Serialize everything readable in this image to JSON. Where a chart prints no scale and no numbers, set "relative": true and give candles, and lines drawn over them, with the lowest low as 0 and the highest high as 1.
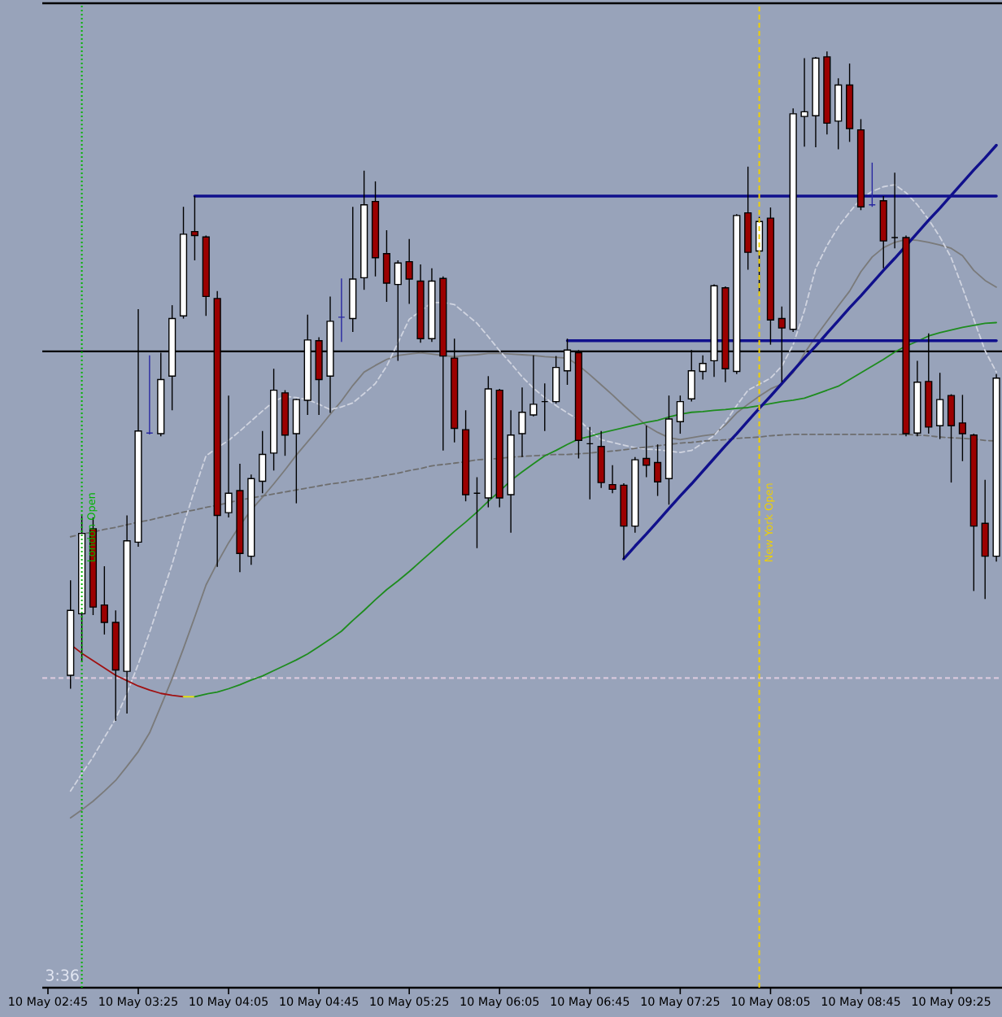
{
  "chart_data": {
    "type": "candlestick",
    "relative": true,
    "categories": [
      "10 May 02:45",
      null,
      null,
      null,
      null,
      null,
      null,
      null,
      "10 May 03:25",
      null,
      null,
      null,
      null,
      null,
      null,
      null,
      "10 May 04:05",
      null,
      null,
      null,
      null,
      null,
      null,
      null,
      "10 May 04:45",
      null,
      null,
      null,
      null,
      null,
      null,
      null,
      "10 May 05:25",
      null,
      null,
      null,
      null,
      null,
      null,
      null,
      "10 May 06:05",
      null,
      null,
      null,
      null,
      null,
      null,
      null,
      "10 May 06:45",
      null,
      null,
      null,
      null,
      null,
      null,
      null,
      "10 May 07:25",
      null,
      null,
      null,
      null,
      null,
      null,
      null,
      "10 May 08:05",
      null,
      null,
      null,
      null,
      null,
      null,
      null,
      "10 May 08:45",
      null,
      null,
      null,
      null,
      null,
      null,
      null,
      "10 May 09:25",
      null,
      null,
      null,
      null
    ],
    "ohlc": [
      null,
      null,
      [
        0.068,
        0.21,
        0.048,
        0.165
      ],
      [
        0.16,
        0.306,
        0.088,
        0.28
      ],
      [
        0.287,
        0.304,
        0.158,
        0.17
      ],
      [
        0.173,
        0.231,
        0.129,
        0.147
      ],
      [
        0.147,
        0.165,
        0.0,
        0.076
      ],
      [
        0.074,
        0.307,
        0.011,
        0.269
      ],
      [
        0.267,
        0.615,
        0.26,
        0.433
      ],
      [
        0.43,
        0.546,
        0.428,
        0.43
      ],
      [
        0.429,
        0.55,
        0.425,
        0.51
      ],
      [
        0.515,
        0.621,
        0.464,
        0.601
      ],
      [
        0.605,
        0.768,
        0.601,
        0.727
      ],
      [
        0.731,
        0.784,
        0.688,
        0.725
      ],
      [
        0.723,
        0.725,
        0.605,
        0.634
      ],
      [
        0.631,
        0.642,
        0.23,
        0.307
      ],
      [
        0.311,
        0.486,
        0.304,
        0.34
      ],
      [
        0.344,
        0.384,
        0.222,
        0.25
      ],
      [
        0.246,
        0.368,
        0.233,
        0.362
      ],
      [
        0.358,
        0.433,
        0.34,
        0.398
      ],
      [
        0.4,
        0.526,
        0.374,
        0.494
      ],
      [
        0.49,
        0.494,
        0.396,
        0.427
      ],
      [
        0.429,
        0.481,
        0.325,
        0.48
      ],
      [
        0.479,
        0.607,
        0.457,
        0.569
      ],
      [
        0.568,
        0.573,
        0.457,
        0.51
      ],
      [
        0.515,
        0.634,
        0.46,
        0.597
      ],
      [
        0.603,
        0.661,
        0.566,
        0.603
      ],
      [
        0.601,
        0.768,
        0.581,
        0.66
      ],
      [
        0.662,
        0.822,
        0.644,
        0.771
      ],
      [
        0.776,
        0.806,
        0.664,
        0.692
      ],
      [
        0.698,
        0.733,
        0.626,
        0.654
      ],
      [
        0.652,
        0.688,
        0.538,
        0.684
      ],
      [
        0.686,
        0.72,
        0.623,
        0.66
      ],
      [
        0.657,
        0.682,
        0.565,
        0.571
      ],
      [
        0.571,
        0.676,
        0.566,
        0.657
      ],
      [
        0.661,
        0.664,
        0.404,
        0.545
      ],
      [
        0.542,
        0.571,
        0.416,
        0.437
      ],
      [
        0.435,
        0.464,
        0.328,
        0.338
      ],
      [
        0.34,
        0.364,
        0.258,
        0.34
      ],
      [
        0.333,
        0.515,
        0.319,
        0.496
      ],
      [
        0.494,
        0.496,
        0.319,
        0.333
      ],
      [
        0.338,
        0.464,
        0.281,
        0.427
      ],
      [
        0.429,
        0.498,
        0.394,
        0.461
      ],
      [
        0.457,
        0.546,
        0.455,
        0.473
      ],
      [
        0.477,
        0.504,
        0.433,
        0.477
      ],
      [
        0.477,
        0.545,
        0.474,
        0.528
      ],
      [
        0.523,
        0.571,
        0.502,
        0.554
      ],
      [
        0.55,
        0.554,
        0.392,
        0.419
      ],
      [
        0.414,
        0.439,
        0.331,
        0.414
      ],
      [
        0.41,
        0.433,
        0.348,
        0.356
      ],
      [
        0.353,
        0.382,
        0.34,
        0.346
      ],
      [
        0.352,
        0.355,
        0.242,
        0.291
      ],
      [
        0.291,
        0.394,
        0.281,
        0.39
      ],
      [
        0.392,
        0.441,
        0.364,
        0.382
      ],
      [
        0.386,
        0.413,
        0.336,
        0.357
      ],
      [
        0.362,
        0.486,
        0.323,
        0.451
      ],
      [
        0.447,
        0.486,
        0.429,
        0.477
      ],
      [
        0.481,
        0.554,
        0.477,
        0.523
      ],
      [
        0.522,
        0.546,
        0.51,
        0.534
      ],
      [
        0.538,
        0.652,
        0.514,
        0.65
      ],
      [
        0.647,
        0.649,
        0.506,
        0.526
      ],
      [
        0.522,
        0.757,
        0.518,
        0.755
      ],
      [
        0.759,
        0.828,
        0.674,
        0.7
      ],
      [
        0.702,
        0.753,
        0.639,
        0.746
      ],
      [
        0.751,
        0.767,
        0.562,
        0.599
      ],
      [
        0.601,
        0.619,
        0.506,
        0.587
      ],
      [
        0.585,
        0.915,
        0.581,
        0.907
      ],
      [
        0.903,
        0.99,
        0.858,
        0.91
      ],
      [
        0.904,
        0.992,
        0.857,
        0.99
      ],
      [
        0.992,
        1.0,
        0.876,
        0.893
      ],
      [
        0.896,
        0.96,
        0.854,
        0.95
      ],
      [
        0.95,
        0.982,
        0.865,
        0.885
      ],
      [
        0.883,
        0.899,
        0.763,
        0.768
      ],
      [
        0.771,
        0.834,
        0.768,
        0.771
      ],
      [
        0.777,
        0.784,
        0.676,
        0.717
      ],
      [
        0.722,
        0.819,
        0.706,
        0.722
      ],
      [
        0.722,
        0.725,
        0.425,
        0.429
      ],
      [
        0.43,
        0.538,
        0.425,
        0.506
      ],
      [
        0.507,
        0.579,
        0.429,
        0.439
      ],
      [
        0.441,
        0.52,
        0.421,
        0.48
      ],
      [
        0.486,
        0.488,
        0.356,
        0.441
      ],
      [
        0.445,
        0.487,
        0.388,
        0.429
      ],
      [
        0.427,
        0.429,
        0.194,
        0.291
      ],
      [
        0.295,
        0.36,
        0.182,
        0.246
      ],
      [
        0.246,
        0.518,
        0.238,
        0.512
      ]
    ],
    "colors": [
      null,
      null,
      "#ffffff",
      "#ffffff",
      "#9b0000",
      "#9b0000",
      "#9b0000",
      "#ffffff",
      "#ffffff",
      "#2828a0",
      "#ffffff",
      "#ffffff",
      "#ffffff",
      "#9b0000",
      "#9b0000",
      "#9b0000",
      "#ffffff",
      "#9b0000",
      "#ffffff",
      "#ffffff",
      "#ffffff",
      "#9b0000",
      "#ffffff",
      "#ffffff",
      "#9b0000",
      "#ffffff",
      "#2828a0",
      "#ffffff",
      "#ffffff",
      "#9b0000",
      "#9b0000",
      "#ffffff",
      "#9b0000",
      "#9b0000",
      "#ffffff",
      "#9b0000",
      "#9b0000",
      "#9b0000",
      "#000000",
      "#ffffff",
      "#9b0000",
      "#ffffff",
      "#ffffff",
      "#ffffff",
      "#000000",
      "#ffffff",
      "#ffffff",
      "#9b0000",
      "#000000",
      "#9b0000",
      "#9b0000",
      "#9b0000",
      "#ffffff",
      "#9b0000",
      "#9b0000",
      "#ffffff",
      "#ffffff",
      "#ffffff",
      "#ffffff",
      "#ffffff",
      "#9b0000",
      "#ffffff",
      "#9b0000",
      "#ffffff",
      "#9b0000",
      "#9b0000",
      "#ffffff",
      "#ffffff",
      "#ffffff",
      "#9b0000",
      "#ffffff",
      "#9b0000",
      "#9b0000",
      "#2828a0",
      "#9b0000",
      "#000000",
      "#9b0000",
      "#ffffff",
      "#9b0000",
      "#ffffff",
      "#9b0000",
      "#9b0000",
      "#9b0000",
      "#9b0000",
      "#ffffff"
    ],
    "series": [
      {
        "type": "line",
        "color": "#7a7a7a",
        "line_style": "solid",
        "values": [
          null,
          null,
          -0.145,
          -0.133,
          -0.12,
          -0.105,
          -0.089,
          -0.068,
          -0.046,
          -0.018,
          0.022,
          0.063,
          0.108,
          0.155,
          0.203,
          0.236,
          0.266,
          0.292,
          0.315,
          0.334,
          0.354,
          0.375,
          0.397,
          0.417,
          0.437,
          0.458,
          0.478,
          0.501,
          0.521,
          0.531,
          0.54,
          0.546,
          0.548,
          0.55,
          0.548,
          0.546,
          0.544,
          0.546,
          0.547,
          0.549,
          0.549,
          0.548,
          0.547,
          0.546,
          0.544,
          0.543,
          0.542,
          0.531,
          0.517,
          0.502,
          0.487,
          0.471,
          0.456,
          0.441,
          0.431,
          0.423,
          0.42,
          0.423,
          0.426,
          0.428,
          0.442,
          0.46,
          0.473,
          0.485,
          0.496,
          0.503,
          0.52,
          0.549,
          0.574,
          0.597,
          0.62,
          0.642,
          0.671,
          0.693,
          0.707,
          0.715,
          0.719,
          0.718,
          0.715,
          0.711,
          0.706,
          0.695,
          0.673,
          0.658,
          0.648
        ]
      },
      {
        "type": "line",
        "color": "#d0d4e0",
        "line_style": "dashed",
        "values": [
          null,
          null,
          -0.105,
          -0.079,
          -0.054,
          -0.025,
          0.003,
          0.041,
          0.085,
          0.132,
          0.183,
          0.234,
          0.292,
          0.346,
          0.396,
          0.408,
          0.419,
          0.433,
          0.448,
          0.463,
          0.477,
          0.485,
          0.483,
          0.48,
          0.473,
          0.465,
          0.469,
          0.475,
          0.489,
          0.504,
          0.53,
          0.565,
          0.6,
          0.612,
          0.625,
          0.625,
          0.622,
          0.608,
          0.594,
          0.574,
          0.553,
          0.534,
          0.514,
          0.497,
          0.483,
          0.471,
          0.46,
          0.45,
          0.434,
          0.42,
          0.416,
          0.412,
          0.408,
          0.406,
          0.405,
          0.403,
          0.401,
          0.404,
          0.415,
          0.426,
          0.446,
          0.471,
          0.494,
          0.503,
          0.512,
          0.53,
          0.562,
          0.613,
          0.676,
          0.71,
          0.738,
          0.76,
          0.78,
          0.791,
          0.798,
          0.801,
          0.789,
          0.771,
          0.749,
          0.723,
          0.692,
          0.647,
          0.6,
          0.553,
          0.521
        ]
      },
      {
        "type": "line",
        "color": "#6e6e6e",
        "line_style": "dashed",
        "values": [
          null,
          null,
          0.275,
          0.279,
          0.282,
          0.286,
          0.289,
          0.293,
          0.297,
          0.3,
          0.304,
          0.308,
          0.312,
          0.315,
          0.319,
          0.322,
          0.326,
          0.33,
          0.333,
          0.336,
          0.339,
          0.342,
          0.345,
          0.348,
          0.351,
          0.354,
          0.356,
          0.359,
          0.361,
          0.364,
          0.367,
          0.37,
          0.374,
          0.377,
          0.381,
          0.383,
          0.385,
          0.387,
          0.39,
          0.391,
          0.392,
          0.394,
          0.395,
          0.396,
          0.397,
          0.398,
          0.398,
          0.399,
          0.4,
          0.402,
          0.403,
          0.405,
          0.407,
          0.409,
          0.411,
          0.413,
          0.415,
          0.416,
          0.418,
          0.419,
          0.42,
          0.422,
          0.423,
          0.424,
          0.426,
          0.427,
          0.428,
          0.428,
          0.428,
          0.428,
          0.428,
          0.428,
          0.428,
          0.428,
          0.428,
          0.428,
          0.428,
          0.427,
          0.426,
          0.424,
          0.423,
          0.422,
          0.421,
          0.419,
          0.418
        ]
      },
      {
        "type": "line",
        "color": "#a01010",
        "line_style": "solid",
        "values": [
          null,
          null,
          0.114,
          0.101,
          0.09,
          0.079,
          0.068,
          0.06,
          0.052,
          0.046,
          0.041,
          0.038,
          0.036,
          null,
          null,
          null,
          null,
          null,
          null,
          null,
          null,
          null,
          null,
          null,
          null,
          null,
          null,
          null,
          null,
          null,
          null,
          null,
          null,
          null,
          null,
          null,
          null,
          null,
          null,
          null,
          null,
          null,
          null,
          null,
          null,
          null,
          null,
          null,
          null,
          null,
          null,
          null,
          null,
          null,
          null,
          null,
          null,
          null,
          null,
          null,
          null,
          null,
          null,
          null,
          null,
          null,
          null,
          null,
          null,
          null,
          null,
          null,
          null,
          null,
          null,
          null,
          null,
          null,
          null,
          null,
          null,
          null,
          null,
          null,
          null
        ]
      },
      {
        "type": "line",
        "color": "#e8e800",
        "line_style": "solid",
        "values": [
          null,
          null,
          null,
          null,
          null,
          null,
          null,
          null,
          null,
          null,
          null,
          null,
          0.036,
          0.036,
          null,
          null,
          null,
          null,
          null,
          null,
          null,
          null,
          null,
          null,
          null,
          null,
          null,
          null,
          null,
          null,
          null,
          null,
          null,
          null,
          null,
          null,
          null,
          null,
          null,
          null,
          null,
          null,
          null,
          null,
          null,
          null,
          null,
          null,
          null,
          null,
          null,
          null,
          null,
          null,
          null,
          null,
          null,
          null,
          null,
          null,
          null,
          null,
          null,
          null,
          null,
          null,
          null,
          null,
          null,
          null,
          null,
          null,
          null,
          null,
          null,
          null,
          null,
          null,
          null,
          null,
          null,
          null,
          null,
          null,
          null
        ]
      },
      {
        "type": "line",
        "color": "#1e8c1e",
        "line_style": "solid",
        "values": [
          null,
          null,
          null,
          null,
          null,
          null,
          null,
          null,
          null,
          null,
          null,
          null,
          null,
          0.036,
          0.04,
          0.043,
          0.048,
          0.054,
          0.061,
          0.067,
          0.075,
          0.083,
          0.091,
          0.1,
          0.111,
          0.122,
          0.134,
          0.15,
          0.165,
          0.181,
          0.196,
          0.209,
          0.223,
          0.238,
          0.253,
          0.268,
          0.283,
          0.297,
          0.312,
          0.328,
          0.343,
          0.359,
          0.372,
          0.384,
          0.396,
          0.404,
          0.413,
          0.421,
          0.425,
          0.43,
          0.434,
          0.438,
          0.442,
          0.446,
          0.449,
          0.454,
          0.458,
          0.461,
          0.462,
          0.464,
          0.465,
          0.467,
          0.468,
          0.471,
          0.474,
          0.477,
          0.479,
          0.482,
          0.488,
          0.494,
          0.5,
          0.51,
          0.52,
          0.53,
          0.54,
          0.551,
          0.56,
          0.567,
          0.575,
          0.58,
          0.584,
          0.588,
          0.591,
          0.594,
          0.595
        ]
      },
      {
        "type": "line",
        "color": "#10108c",
        "line_style": "solid",
        "values": [
          null,
          null,
          null,
          null,
          null,
          null,
          null,
          null,
          null,
          null,
          null,
          null,
          null,
          0.784,
          0.784,
          0.784,
          0.784,
          0.784,
          0.784,
          0.784,
          0.784,
          0.784,
          0.784,
          0.784,
          0.784,
          0.784,
          0.784,
          0.784,
          0.784,
          0.784,
          0.784,
          0.784,
          0.784,
          0.784,
          0.784,
          0.784,
          0.784,
          0.784,
          0.784,
          0.784,
          0.784,
          0.784,
          0.784,
          0.784,
          0.784,
          0.784,
          0.784,
          0.784,
          0.784,
          0.784,
          0.784,
          0.784,
          0.784,
          0.784,
          0.784,
          0.784,
          0.784,
          0.784,
          0.784,
          0.784,
          0.784,
          0.784,
          0.784,
          0.784,
          0.784,
          0.784,
          0.784,
          0.784,
          0.784,
          0.784,
          0.784,
          0.784,
          0.784,
          0.784,
          0.784,
          0.784,
          0.784,
          0.784,
          0.784,
          0.784,
          0.784,
          0.784,
          0.784,
          0.784,
          0.784
        ]
      },
      {
        "type": "line",
        "color": "#10108c",
        "line_style": "solid",
        "values": [
          null,
          null,
          null,
          null,
          null,
          null,
          null,
          null,
          null,
          null,
          null,
          null,
          null,
          null,
          null,
          null,
          null,
          null,
          null,
          null,
          null,
          null,
          null,
          null,
          null,
          null,
          null,
          null,
          null,
          null,
          null,
          null,
          null,
          null,
          null,
          null,
          null,
          null,
          null,
          null,
          null,
          null,
          null,
          null,
          null,
          null,
          0.568,
          0.568,
          0.568,
          0.568,
          0.568,
          0.568,
          0.568,
          0.568,
          0.568,
          0.568,
          0.568,
          0.568,
          0.568,
          0.568,
          0.568,
          0.568,
          0.568,
          0.568,
          0.568,
          0.568,
          0.568,
          0.568,
          0.568,
          0.568,
          0.568,
          0.568,
          0.568,
          0.568,
          0.568,
          0.568,
          0.568,
          0.568,
          0.568,
          0.568,
          0.568,
          0.568,
          0.568,
          0.568,
          0.568
        ]
      },
      {
        "type": "line",
        "color": "#10108c",
        "line_style": "solid",
        "values": [
          null,
          null,
          null,
          null,
          null,
          null,
          null,
          null,
          null,
          null,
          null,
          null,
          null,
          null,
          null,
          null,
          null,
          null,
          null,
          null,
          null,
          null,
          null,
          null,
          null,
          null,
          null,
          null,
          null,
          null,
          null,
          null,
          null,
          null,
          null,
          null,
          null,
          null,
          null,
          null,
          null,
          null,
          null,
          null,
          null,
          null,
          null,
          null,
          null,
          null,
          null,
          0.242,
          0.261,
          0.279,
          0.298,
          0.317,
          0.336,
          0.354,
          0.373,
          0.392,
          0.411,
          0.429,
          0.448,
          0.467,
          0.485,
          0.504,
          0.523,
          0.542,
          0.56,
          0.579,
          0.598,
          0.617,
          0.635,
          0.654,
          0.673,
          0.691,
          0.71,
          0.729,
          0.748,
          0.766,
          0.785,
          0.804,
          0.823,
          0.841,
          0.86
        ]
      }
    ],
    "ref_lines": [
      {
        "axis": "y",
        "value": 0.552,
        "color": "#000000",
        "line_style": "solid"
      },
      {
        "axis": "y",
        "value": 0.064,
        "color": "#d8c8dc",
        "line_style": "dashed"
      }
    ],
    "annotations": [
      "3:36",
      "London Open",
      "New York Open"
    ]
  }
}
